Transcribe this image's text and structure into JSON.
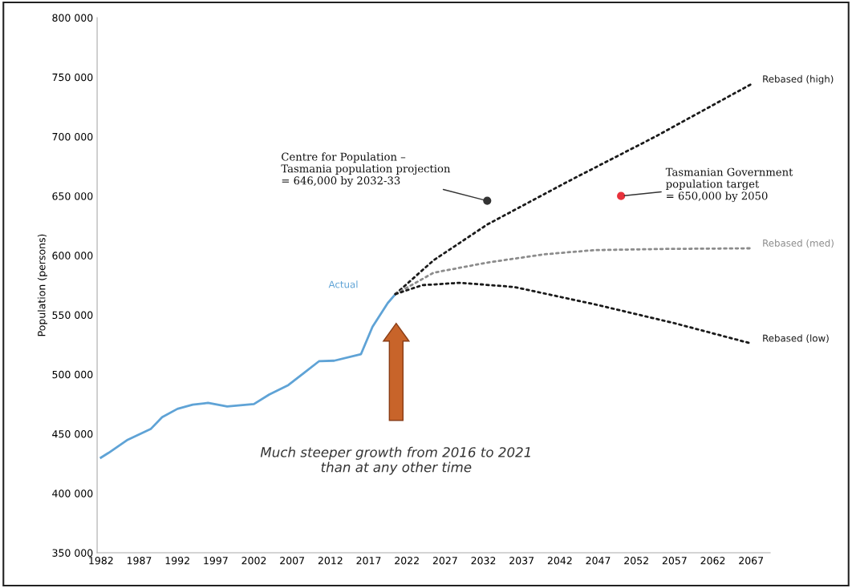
{
  "chart_data": {
    "type": "line",
    "ylabel": "Population (persons)",
    "xlim": [
      1981.5,
      2069.5
    ],
    "xticks": [
      1982,
      1987,
      1992,
      1997,
      2002,
      2007,
      2012,
      2017,
      2022,
      2027,
      2032,
      2037,
      2042,
      2047,
      2052,
      2057,
      2062,
      2067
    ],
    "ylim": [
      350000,
      800000
    ],
    "yticks": [
      {
        "value": 350000,
        "label": "350 000"
      },
      {
        "value": 400000,
        "label": "400 000"
      },
      {
        "value": 450000,
        "label": "450 000"
      },
      {
        "value": 500000,
        "label": "500 000"
      },
      {
        "value": 550000,
        "label": "550 000"
      },
      {
        "value": 600000,
        "label": "600 000"
      },
      {
        "value": 650000,
        "label": "650 000"
      },
      {
        "value": 700000,
        "label": "700 000"
      },
      {
        "value": 750000,
        "label": "750 000"
      },
      {
        "value": 800000,
        "label": "800 000"
      }
    ],
    "grid": false,
    "legend": false,
    "marker": "none",
    "series": [
      {
        "name": "Actual",
        "color": "#5fa3d6",
        "line_style": "solid",
        "x": [
          1982,
          1983,
          1985.5,
          1988.5,
          1990,
          1992,
          1994,
          1996,
          1998.5,
          2002,
          2004,
          2006.5,
          2008.5,
          2010.5,
          2012.5,
          2016,
          2017.5,
          2019.5,
          2020.5
        ],
        "values": [
          430000,
          434000,
          445000,
          454000,
          464000,
          471000,
          474500,
          476000,
          473000,
          475000,
          483000,
          491000,
          501000,
          511000,
          511500,
          517000,
          540000,
          560000,
          567500
        ]
      },
      {
        "name": "Rebased (high)",
        "color": "#1a1a1a",
        "line_style": "dotted",
        "x": [
          2020.5,
          2025.5,
          2032.5,
          2043,
          2054.5,
          2067
        ],
        "values": [
          567500,
          596000,
          626000,
          662000,
          700000,
          744000
        ]
      },
      {
        "name": "Rebased (med)",
        "color": "#8c8c8c",
        "line_style": "dotted",
        "x": [
          2020.5,
          2025.5,
          2032.5,
          2040,
          2046.5,
          2056,
          2067
        ],
        "values": [
          567500,
          585500,
          594000,
          601000,
          604500,
          605500,
          606000
        ]
      },
      {
        "name": "Rebased (low)",
        "color": "#1a1a1a",
        "line_style": "dotted",
        "x": [
          2020.5,
          2024,
          2029,
          2036,
          2046.5,
          2057,
          2067
        ],
        "values": [
          567500,
          575000,
          577000,
          573500,
          559000,
          543000,
          526000
        ]
      },
      {
        "type": "scatter",
        "color": "#333333",
        "marker": "circle",
        "x": [
          2032.5
        ],
        "values": [
          646000
        ]
      },
      {
        "type": "scatter",
        "color": "#e8323c",
        "marker": "circle",
        "x": [
          2050
        ],
        "values": [
          650000
        ]
      }
    ],
    "annotations": [
      {
        "text": "Centre for Population –\nTasmania population projection\n= 646,000 by 2032-33",
        "x": 2032.5,
        "y": 646000
      },
      {
        "text": "Tasmanian Government\npopulation target\n= 650,000 by 2050",
        "x": 2050,
        "y": 650000
      },
      "Much steeper growth from 2016 to 2021\nthan at any other time"
    ]
  }
}
